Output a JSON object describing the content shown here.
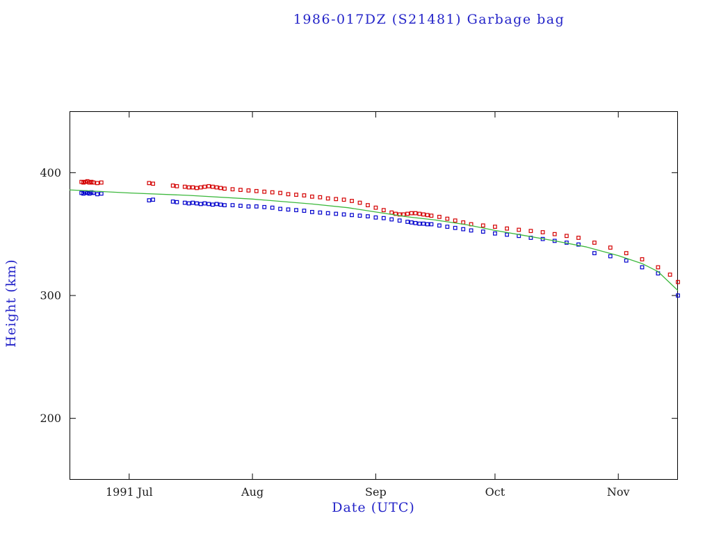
{
  "chart_data": {
    "type": "scatter",
    "title": "1986-017DZ (S21481) Garbage bag",
    "xlabel": "Date (UTC)",
    "ylabel": "Height (km)",
    "x_unit": "days since 1991-06-16",
    "xlim": [
      0,
      153
    ],
    "ylim": [
      150,
      450
    ],
    "grid": false,
    "legend": "none",
    "x_ticks": [
      {
        "t": 15,
        "label": "1991 Jul"
      },
      {
        "t": 46,
        "label": "Aug"
      },
      {
        "t": 77,
        "label": "Sep"
      },
      {
        "t": 107,
        "label": "Oct"
      },
      {
        "t": 138,
        "label": "Nov"
      }
    ],
    "y_ticks": [
      {
        "v": 200,
        "label": "200"
      },
      {
        "v": 300,
        "label": "300"
      },
      {
        "v": 400,
        "label": "400"
      }
    ],
    "colors": {
      "title_text": "#2323c8",
      "axis_label_text": "#2323c8",
      "tick_text": "#1a1a1a",
      "frame": "#000000",
      "red_series": "#d40000",
      "blue_series": "#0000cd",
      "green_line": "#3cb83c",
      "background": "#ffffff"
    },
    "series": [
      {
        "name": "red-squares",
        "type": "scatter",
        "marker": "open-square",
        "color_key": "red_series",
        "points": [
          [
            3,
            392.5
          ],
          [
            3.5,
            392
          ],
          [
            4,
            392.5
          ],
          [
            4.5,
            393
          ],
          [
            5,
            392
          ],
          [
            5.5,
            392.5
          ],
          [
            6,
            392
          ],
          [
            7,
            391.5
          ],
          [
            8,
            392
          ],
          [
            20,
            391.5
          ],
          [
            21,
            391
          ],
          [
            26,
            389.5
          ],
          [
            27,
            389
          ],
          [
            29,
            388.5
          ],
          [
            30,
            388
          ],
          [
            31,
            388
          ],
          [
            32,
            387.5
          ],
          [
            33,
            388
          ],
          [
            34,
            388.5
          ],
          [
            35,
            389
          ],
          [
            36,
            388.5
          ],
          [
            37,
            388
          ],
          [
            38,
            387.5
          ],
          [
            39,
            387
          ],
          [
            41,
            386.5
          ],
          [
            43,
            386
          ],
          [
            45,
            385.5
          ],
          [
            47,
            385
          ],
          [
            49,
            384.5
          ],
          [
            51,
            384
          ],
          [
            53,
            383.5
          ],
          [
            55,
            382.5
          ],
          [
            57,
            382
          ],
          [
            59,
            381.5
          ],
          [
            61,
            380.5
          ],
          [
            63,
            380
          ],
          [
            65,
            379
          ],
          [
            67,
            378.5
          ],
          [
            69,
            378
          ],
          [
            71,
            377
          ],
          [
            73,
            375.5
          ],
          [
            75,
            373.5
          ],
          [
            77,
            371.5
          ],
          [
            79,
            369.5
          ],
          [
            81,
            367.5
          ],
          [
            82,
            366.5
          ],
          [
            83,
            366
          ],
          [
            84,
            366
          ],
          [
            85,
            366.5
          ],
          [
            86,
            367
          ],
          [
            87,
            367
          ],
          [
            88,
            366.5
          ],
          [
            89,
            366
          ],
          [
            90,
            365.5
          ],
          [
            91,
            365
          ],
          [
            93,
            364
          ],
          [
            95,
            362.5
          ],
          [
            97,
            361
          ],
          [
            99,
            359.5
          ],
          [
            101,
            358
          ],
          [
            104,
            357
          ],
          [
            107,
            356
          ],
          [
            110,
            354.5
          ],
          [
            113,
            353.5
          ],
          [
            116,
            352.5
          ],
          [
            119,
            351.5
          ],
          [
            122,
            350
          ],
          [
            125,
            348.5
          ],
          [
            128,
            347
          ],
          [
            132,
            343
          ],
          [
            136,
            339
          ],
          [
            140,
            334.5
          ],
          [
            144,
            329.5
          ],
          [
            148,
            323
          ],
          [
            151,
            317
          ],
          [
            153,
            311
          ]
        ]
      },
      {
        "name": "blue-squares",
        "type": "scatter",
        "marker": "open-square",
        "color_key": "blue_series",
        "points": [
          [
            3,
            383.5
          ],
          [
            3.5,
            383
          ],
          [
            4,
            384
          ],
          [
            4.5,
            383.5
          ],
          [
            5,
            383
          ],
          [
            5.5,
            384
          ],
          [
            6,
            383.5
          ],
          [
            7,
            382.5
          ],
          [
            8,
            383
          ],
          [
            20,
            377.5
          ],
          [
            21,
            378
          ],
          [
            26,
            376.5
          ],
          [
            27,
            376
          ],
          [
            29,
            375.5
          ],
          [
            30,
            375
          ],
          [
            31,
            375.5
          ],
          [
            32,
            375
          ],
          [
            33,
            374.5
          ],
          [
            34,
            375
          ],
          [
            35,
            374.5
          ],
          [
            36,
            374
          ],
          [
            37,
            374.5
          ],
          [
            38,
            374
          ],
          [
            39,
            373.5
          ],
          [
            41,
            373.5
          ],
          [
            43,
            373
          ],
          [
            45,
            372.5
          ],
          [
            47,
            372.5
          ],
          [
            49,
            372
          ],
          [
            51,
            371.5
          ],
          [
            53,
            370.5
          ],
          [
            55,
            370
          ],
          [
            57,
            369.5
          ],
          [
            59,
            369
          ],
          [
            61,
            368
          ],
          [
            63,
            367.5
          ],
          [
            65,
            367
          ],
          [
            67,
            366.5
          ],
          [
            69,
            366
          ],
          [
            71,
            365.5
          ],
          [
            73,
            365
          ],
          [
            75,
            364.5
          ],
          [
            77,
            363.5
          ],
          [
            79,
            363
          ],
          [
            81,
            362
          ],
          [
            83,
            361
          ],
          [
            85,
            360
          ],
          [
            86,
            359.5
          ],
          [
            87,
            359
          ],
          [
            88,
            358.5
          ],
          [
            89,
            358.5
          ],
          [
            90,
            358
          ],
          [
            91,
            358
          ],
          [
            93,
            357
          ],
          [
            95,
            356
          ],
          [
            97,
            355
          ],
          [
            99,
            354
          ],
          [
            101,
            353
          ],
          [
            104,
            352
          ],
          [
            107,
            350.5
          ],
          [
            110,
            349.5
          ],
          [
            113,
            348.5
          ],
          [
            116,
            347
          ],
          [
            119,
            346
          ],
          [
            122,
            344.5
          ],
          [
            125,
            343
          ],
          [
            128,
            341.5
          ],
          [
            132,
            334.5
          ],
          [
            136,
            332
          ],
          [
            140,
            328.5
          ],
          [
            144,
            323
          ],
          [
            148,
            318
          ],
          [
            153,
            300
          ]
        ]
      },
      {
        "name": "green-line",
        "type": "line",
        "color_key": "green_line",
        "points": [
          [
            0,
            386
          ],
          [
            15,
            383.5
          ],
          [
            30,
            381.5
          ],
          [
            46,
            378.5
          ],
          [
            61,
            374.5
          ],
          [
            70,
            371.5
          ],
          [
            77,
            368
          ],
          [
            85,
            364
          ],
          [
            92,
            361.5
          ],
          [
            100,
            357.5
          ],
          [
            107,
            353
          ],
          [
            115,
            348.5
          ],
          [
            122,
            344.5
          ],
          [
            130,
            339.5
          ],
          [
            138,
            332.5
          ],
          [
            144,
            326
          ],
          [
            148,
            319.5
          ],
          [
            153,
            304
          ]
        ]
      }
    ]
  }
}
